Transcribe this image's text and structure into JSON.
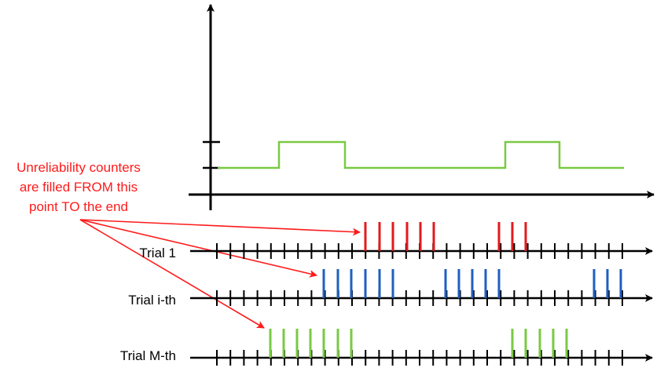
{
  "annotation": {
    "lines": [
      "Unreliability counters",
      "are filled FROM this",
      "point TO the end"
    ],
    "color": "#ff1a1a"
  },
  "signal": {
    "color": "#7ac943",
    "baseline_level": 0,
    "high_level": 1
  },
  "trials": [
    {
      "label": "Trial 1",
      "color": "#e31a1c"
    },
    {
      "label": "Trial i-th",
      "color": "#1f5fbf"
    },
    {
      "label": "Trial M-th",
      "color": "#7ac943"
    }
  ]
}
